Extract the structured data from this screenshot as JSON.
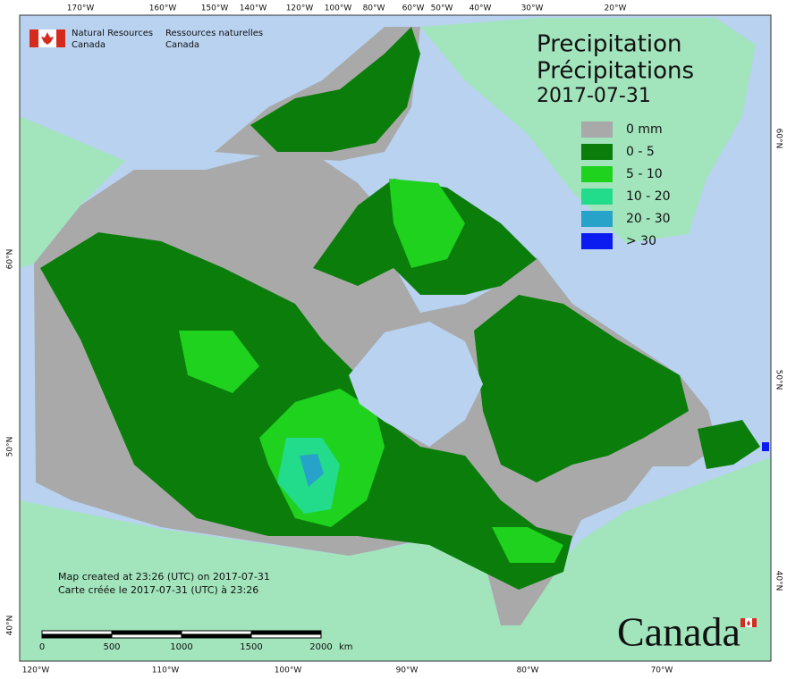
{
  "header": {
    "org_en": [
      "Natural Resources",
      "Canada"
    ],
    "org_fr": [
      "Ressources naturelles",
      "Canada"
    ]
  },
  "title": {
    "en": "Precipitation",
    "fr": "Précipitations",
    "date": "2017-07-31"
  },
  "legend": [
    {
      "label": "0 mm",
      "color": "#a9a9a9"
    },
    {
      "label": "0 - 5",
      "color": "#0b7d0b"
    },
    {
      "label": "5 - 10",
      "color": "#1ed21e"
    },
    {
      "label": "10 - 20",
      "color": "#22dc8c"
    },
    {
      "label": "20 - 30",
      "color": "#27a2c8"
    },
    {
      "label": "> 30",
      "color": "#0a1cf0"
    }
  ],
  "lon_top": [
    "170°W",
    "160°W",
    "150°W",
    "140°W",
    "120°W",
    "100°W",
    "80°W",
    "60°W",
    "50°W",
    "40°W",
    "30°W",
    "20°W"
  ],
  "lon_bottom": [
    "120°W",
    "110°W",
    "100°W",
    "90°W",
    "80°W",
    "70°W"
  ],
  "lat_left": [
    "60°N",
    "50°N",
    "40°N"
  ],
  "lat_right": [
    "60°N",
    "50°N",
    "40°N"
  ],
  "note": [
    "Map created at 23:26 (UTC) on 2017-07-31",
    "Carte créée le 2017-07-31 (UTC) à 23:26"
  ],
  "scale": {
    "ticks": [
      "0",
      "500",
      "1000",
      "1500",
      "2000"
    ],
    "unit": "km"
  },
  "wordmark": "Canada"
}
